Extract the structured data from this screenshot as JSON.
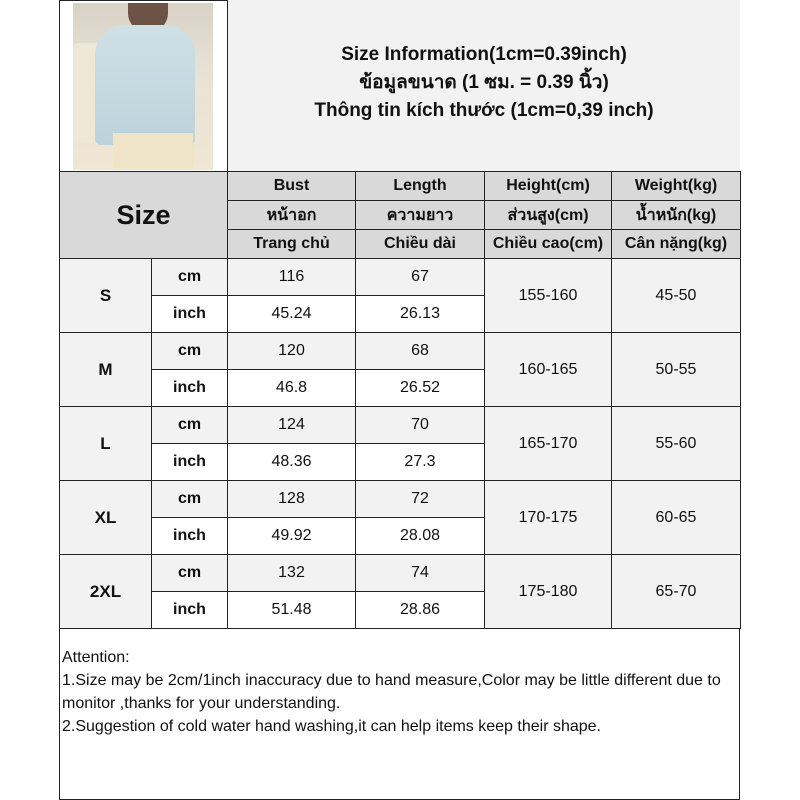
{
  "title": {
    "en": "Size Information(1cm=0.39inch)",
    "th": "ข้อมูลขนาด (1 ซม. = 0.39 นิ้ว)",
    "vi": "Thông tin kích thước (1cm=0,39 inch)"
  },
  "table": {
    "size_label": "Size",
    "columns": [
      {
        "en": "Bust",
        "th": "หน้าอก",
        "vi": "Trang chủ"
      },
      {
        "en": "Length",
        "th": "ความยาว",
        "vi": "Chiều dài"
      },
      {
        "en": "Height(cm)",
        "th": "ส่วนสูง(cm)",
        "vi": "Chiều cao(cm)"
      },
      {
        "en": "Weight(kg)",
        "th": "น้ำหนัก(kg)",
        "vi": "Cân nặng(kg)"
      }
    ],
    "units": {
      "cm": "cm",
      "inch": "inch"
    },
    "rows": [
      {
        "size": "S",
        "bust_cm": "116",
        "length_cm": "67",
        "bust_inch": "45.24",
        "length_inch": "26.13",
        "height": "155-160",
        "weight": "45-50"
      },
      {
        "size": "M",
        "bust_cm": "120",
        "length_cm": "68",
        "bust_inch": "46.8",
        "length_inch": "26.52",
        "height": "160-165",
        "weight": "50-55"
      },
      {
        "size": "L",
        "bust_cm": "124",
        "length_cm": "70",
        "bust_inch": "48.36",
        "length_inch": "27.3",
        "height": "165-170",
        "weight": "55-60"
      },
      {
        "size": "XL",
        "bust_cm": "128",
        "length_cm": "72",
        "bust_inch": "49.92",
        "length_inch": "28.08",
        "height": "170-175",
        "weight": "60-65"
      },
      {
        "size": "2XL",
        "bust_cm": "132",
        "length_cm": "74",
        "bust_inch": "51.48",
        "length_inch": "28.86",
        "height": "175-180",
        "weight": "65-70"
      }
    ]
  },
  "notes": {
    "heading": "Attention:",
    "line1": "1.Size may be 2cm/1inch inaccuracy due to hand measure,Color may be little different due to monitor ,thanks for your understanding.",
    "line2": "2.Suggestion of cold water hand washing,it can help items keep their shape."
  }
}
